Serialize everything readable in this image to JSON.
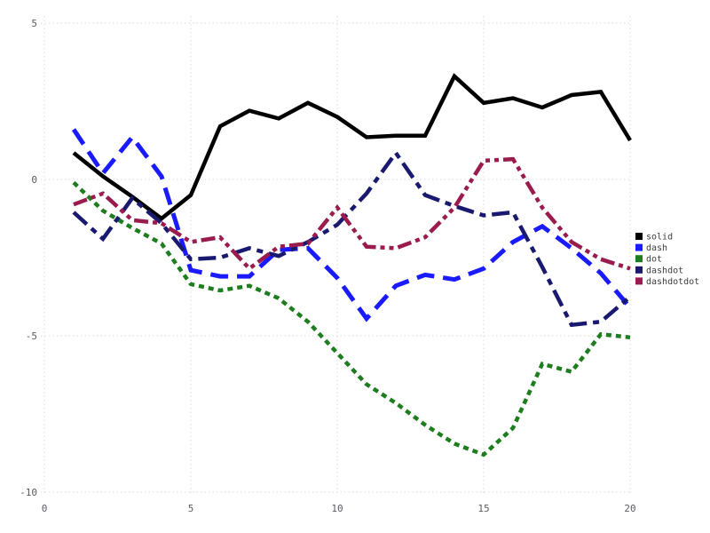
{
  "chart_data": {
    "type": "line",
    "title": "",
    "xlabel": "",
    "ylabel": "",
    "x": [
      1,
      2,
      3,
      4,
      5,
      6,
      7,
      8,
      9,
      10,
      11,
      12,
      13,
      14,
      15,
      16,
      17,
      18,
      19,
      20
    ],
    "series": [
      {
        "name": "solid",
        "color": "#000000",
        "style": "solid",
        "values": [
          0.85,
          0.1,
          -0.55,
          -1.25,
          -0.5,
          1.7,
          2.2,
          1.95,
          2.45,
          2.0,
          1.35,
          1.4,
          1.4,
          3.3,
          2.45,
          2.6,
          2.3,
          2.7,
          2.8,
          1.25
        ]
      },
      {
        "name": "dash",
        "color": "#1a1aff",
        "style": "dash",
        "values": [
          1.6,
          0.2,
          1.35,
          0.1,
          -2.9,
          -3.1,
          -3.1,
          -2.25,
          -2.2,
          -3.15,
          -4.45,
          -3.4,
          -3.05,
          -3.2,
          -2.85,
          -2.0,
          -1.5,
          -2.2,
          -3.0,
          -4.1
        ]
      },
      {
        "name": "dot",
        "color": "#1e7d1e",
        "style": "dot",
        "values": [
          -0.1,
          -1.0,
          -1.55,
          -2.05,
          -3.35,
          -3.55,
          -3.4,
          -3.8,
          -4.55,
          -5.55,
          -6.55,
          -7.15,
          -7.85,
          -8.45,
          -8.8,
          -7.95,
          -5.9,
          -6.15,
          -4.95,
          -5.05
        ]
      },
      {
        "name": "dashdot",
        "color": "#191970",
        "style": "dashdot",
        "values": [
          -1.05,
          -1.9,
          -0.6,
          -1.4,
          -2.55,
          -2.5,
          -2.2,
          -2.45,
          -2.0,
          -1.45,
          -0.45,
          0.85,
          -0.5,
          -0.85,
          -1.15,
          -1.05,
          -2.8,
          -4.65,
          -4.55,
          -3.75
        ]
      },
      {
        "name": "dashdotdot",
        "color": "#9a1b4e",
        "style": "dashdotdot",
        "values": [
          -0.8,
          -0.45,
          -1.3,
          -1.4,
          -2.0,
          -1.85,
          -2.85,
          -2.15,
          -2.05,
          -0.9,
          -2.15,
          -2.2,
          -1.85,
          -0.9,
          0.6,
          0.65,
          -0.9,
          -2.0,
          -2.55,
          -2.85
        ]
      }
    ],
    "xticks": [
      0,
      5,
      10,
      15,
      20
    ],
    "yticks": [
      5,
      0,
      -5,
      -10
    ],
    "xlim": [
      0,
      20.2
    ],
    "ylim": [
      -10.2,
      5.2
    ],
    "grid": true,
    "grid_color": "#d9d9e3",
    "legend_position": "right-outside",
    "legend_labels": [
      "solid",
      "dash",
      "dot",
      "dashdot",
      "dashdotdot"
    ]
  }
}
